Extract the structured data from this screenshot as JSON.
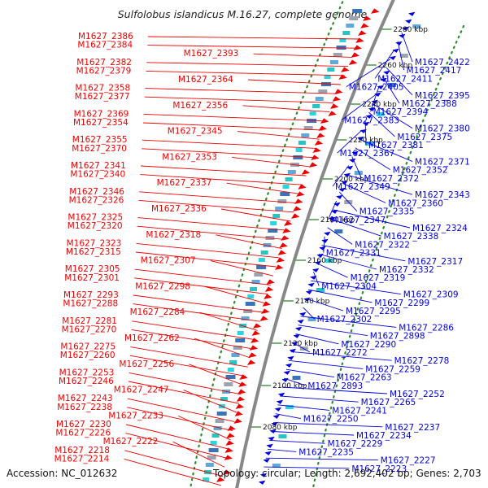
{
  "title": "Sulfolobus islandicus M.16.27, complete genome",
  "footer": {
    "accession": "Accession: NC_012632",
    "topology": "Topology: circular; Length: 2,692,402 bp; Genes: 2,703"
  },
  "colors": {
    "forward": "#ee0000",
    "reverse": "#0000dd",
    "backbone": "#888888",
    "dots": "#2e8b2e",
    "tick": "#1e7d1e",
    "feature_cyan": "#2ad4e0",
    "feature_blue": "#3b73b8",
    "feature_gray": "#9aa4b0"
  },
  "scale_ticks": [
    "2280 kbp",
    "2260 kbp",
    "2240 kbp",
    "2220 kbp",
    "2200 kbp",
    "2180 kbp",
    "2160 kbp",
    "2140 kbp",
    "2120 kbp",
    "2100 kbp",
    "2080 kbp"
  ],
  "left_labels": [
    "M1627_2386",
    "M1627_2384",
    "M1627_2393",
    "M1627_2382",
    "M1627_2379",
    "M1627_2364",
    "M1627_2358",
    "M1627_2377",
    "M1627_2356",
    "M1627_2369",
    "M1627_2354",
    "M1627_2345",
    "M1627_2355",
    "M1627_2370",
    "M1627_2353",
    "M1627_2341",
    "M1627_2340",
    "M1627_2337",
    "M1627_2346",
    "M1627_2326",
    "M1627_2336",
    "M1627_2325",
    "M1627_2320",
    "M1627_2318",
    "M1627_2323",
    "M1627_2315",
    "M1627_2307",
    "M1627_2305",
    "M1627_2301",
    "M1627_2298",
    "M1627_2293",
    "M1627_2288",
    "M1627_2284",
    "M1627_2281",
    "M1627_2270",
    "M1627_2262",
    "M1627_2275",
    "M1627_2260",
    "M1627_2256",
    "M1627_2253",
    "M1627_2246",
    "M1627_2247",
    "M1627_2243",
    "M1627_2238",
    "M1627_2233",
    "M1627_2230",
    "M1627_2226",
    "M1627_2222",
    "M1627_2218",
    "M1627_2214"
  ],
  "right_labels": [
    "M1627_2422",
    "M1627_2417",
    "M1627_2411",
    "M1627_2405",
    "M1627_2395",
    "M1627_2388",
    "M1627_2394",
    "M1627_2383",
    "M1627_2380",
    "M1627_2375",
    "M1627_2381",
    "M1627_2367",
    "M1627_2371",
    "M1627_2352",
    "M1627_2372",
    "M1627_2349",
    "M1627_2343",
    "M1627_2360",
    "M1627_2335",
    "M1627_2347",
    "M1627_2324",
    "M1627_2338",
    "M1627_2322",
    "M1627_2331",
    "M1627_2317",
    "M1627_2332",
    "M1627_2319",
    "M1627_2304",
    "M1627_2309",
    "M1627_2299",
    "M1627_2295",
    "M1627_2302",
    "M1627_2286",
    "M1627_2898",
    "M1627_2290",
    "M1627_2272",
    "M1627_2278",
    "M1627_2259",
    "M1627_2263",
    "M1627_2893",
    "M1627_2252",
    "M1627_2265",
    "M1627_2241",
    "M1627_2250",
    "M1627_2237",
    "M1627_2234",
    "M1627_2229",
    "M1627_2235",
    "M1627_2227",
    "M1627_2223"
  ]
}
